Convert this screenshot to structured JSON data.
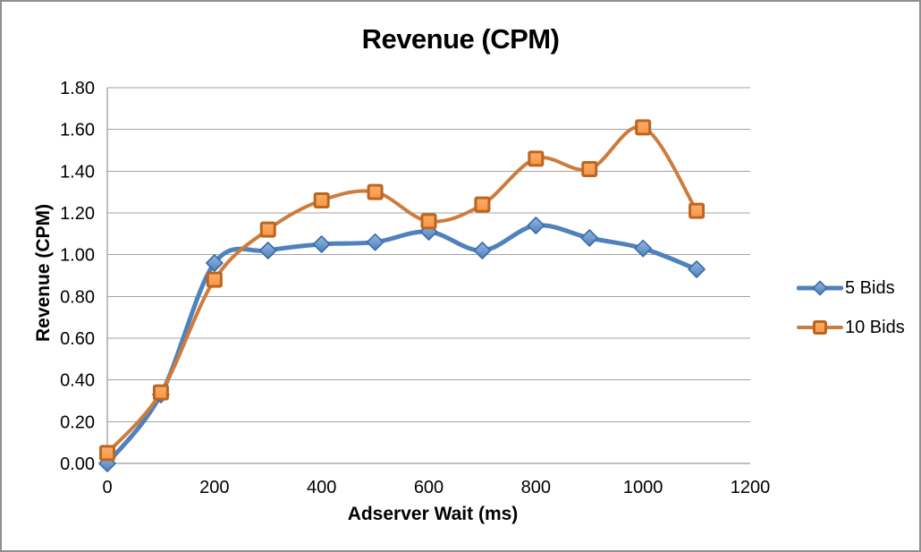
{
  "window": {
    "background": "#ffffff",
    "border_color": "#8f8f8f"
  },
  "chart_data": {
    "type": "line",
    "title": "Revenue (CPM)",
    "xlabel": "Adserver Wait (ms)",
    "ylabel": "Revenue (CPM)",
    "x": [
      0,
      100,
      200,
      300,
      400,
      500,
      600,
      700,
      800,
      900,
      1000,
      1100
    ],
    "series": [
      {
        "name": "5 Bids",
        "marker": "diamond",
        "line_color": "#4F81BD",
        "line_width": 5,
        "marker_fill": "#4F81BD",
        "marker_fill_light": "#94B8DF",
        "marker_stroke": "#3A6CA8",
        "values": [
          0.0,
          0.33,
          0.96,
          1.02,
          1.05,
          1.06,
          1.11,
          1.02,
          1.14,
          1.08,
          1.03,
          0.93
        ]
      },
      {
        "name": "10 Bids",
        "marker": "square",
        "line_color": "#CE7B3C",
        "line_width": 4,
        "marker_fill": "#F79646",
        "marker_fill_light": "#FBAE67",
        "marker_stroke": "#BB651F",
        "values": [
          0.05,
          0.34,
          0.88,
          1.12,
          1.26,
          1.3,
          1.16,
          1.24,
          1.46,
          1.41,
          1.61,
          1.21
        ]
      }
    ],
    "xlim": [
      0,
      1200
    ],
    "ylim": [
      0,
      1.8
    ],
    "xticks": [
      0,
      200,
      400,
      600,
      800,
      1000,
      1200
    ],
    "xtick_labels": [
      "0",
      "200",
      "400",
      "600",
      "800",
      "1000",
      "1200"
    ],
    "yticks": [
      0,
      0.2,
      0.4,
      0.6,
      0.8,
      1.0,
      1.2,
      1.4,
      1.6,
      1.8
    ],
    "ytick_labels": [
      "0.00",
      "0.20",
      "0.40",
      "0.60",
      "0.80",
      "1.00",
      "1.20",
      "1.40",
      "1.60",
      "1.80"
    ],
    "grid": "horizontal",
    "smooth_lines": true,
    "legend_position": "right",
    "gridline_color": "#A3A3A3",
    "axis_color": "#808080",
    "text_color": "#000000"
  }
}
